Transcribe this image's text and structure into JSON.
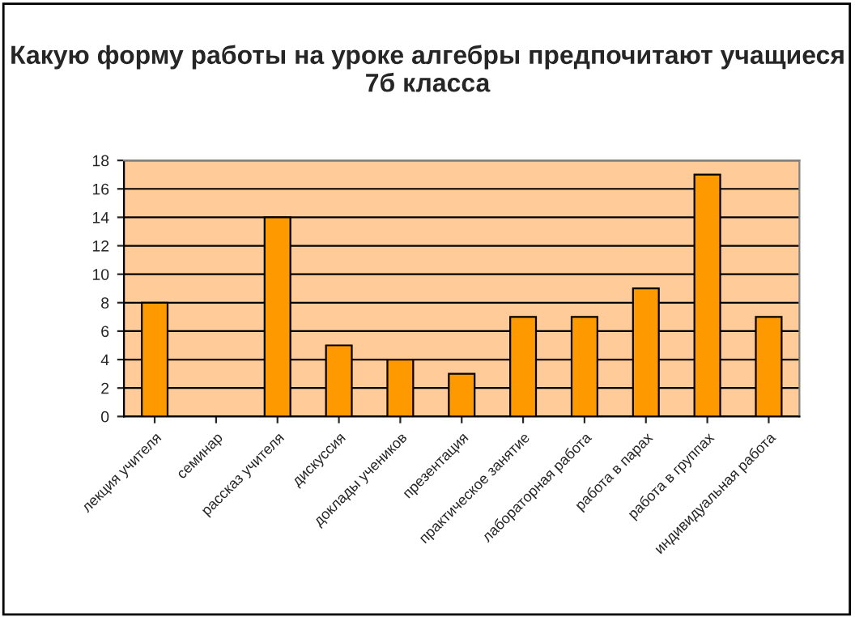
{
  "chart_data": {
    "type": "bar",
    "title": "Какую форму работы на уроке алгебры предпочитают учащиеся 7б класса",
    "categories": [
      "лекция учителя",
      "семинар",
      "рассказ учителя",
      "дискуссия",
      "доклады учеников",
      "презентация",
      "практическое занятие",
      "лабораторная работа",
      "работа в парах",
      "работа в группах",
      "индивидуальная работа"
    ],
    "values": [
      8,
      0,
      14,
      5,
      4,
      3,
      7,
      7,
      9,
      17,
      7
    ],
    "color": "#ff9900",
    "ylim": [
      0,
      18
    ],
    "yticks": [
      0,
      2,
      4,
      6,
      8,
      10,
      12,
      14,
      16,
      18
    ],
    "grid": "y"
  }
}
